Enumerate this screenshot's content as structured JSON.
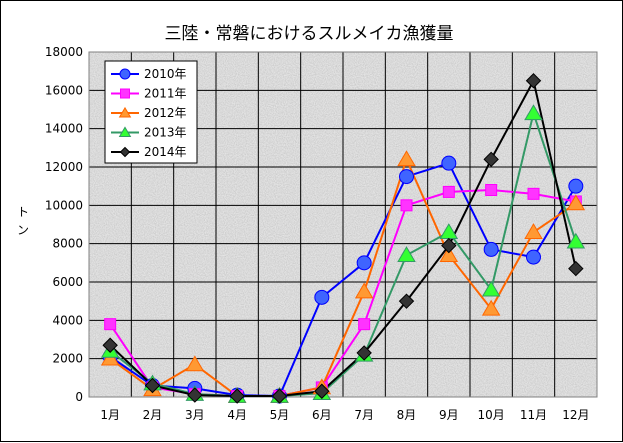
{
  "chart_data": {
    "type": "line",
    "title": "三陸・常磐におけるスルメイカ漁獲量",
    "ylabel": "トン",
    "xlabel": "",
    "categories": [
      "1月",
      "2月",
      "3月",
      "4月",
      "5月",
      "6月",
      "7月",
      "8月",
      "9月",
      "10月",
      "11月",
      "12月"
    ],
    "ylim": [
      0,
      18000
    ],
    "yticks": [
      0,
      2000,
      4000,
      6000,
      8000,
      10000,
      12000,
      14000,
      16000,
      18000
    ],
    "grid": true,
    "legend_position": "top-left",
    "series": [
      {
        "name": "2010年",
        "color": "#0000ff",
        "fill": "#3f64ff",
        "marker": "circle",
        "values": [
          2100,
          600,
          450,
          100,
          50,
          5200,
          7000,
          11500,
          12200,
          7700,
          7300,
          11000
        ]
      },
      {
        "name": "2011年",
        "color": "#ff00ff",
        "fill": "#ff33ff",
        "marker": "square",
        "values": [
          3800,
          500,
          150,
          50,
          50,
          500,
          3800,
          10000,
          10700,
          10800,
          10600,
          10200
        ]
      },
      {
        "name": "2012年",
        "color": "#ff6600",
        "fill": "#ff9933",
        "marker": "triangle",
        "values": [
          2000,
          400,
          1700,
          50,
          50,
          500,
          5500,
          12400,
          7400,
          4600,
          8600,
          10100
        ]
      },
      {
        "name": "2013年",
        "color": "#339966",
        "fill": "#33ff33",
        "marker": "triangle",
        "values": [
          2400,
          700,
          150,
          50,
          50,
          200,
          2200,
          7400,
          8600,
          5600,
          14800,
          8100
        ]
      },
      {
        "name": "2014年",
        "color": "#000000",
        "fill": "#333333",
        "marker": "diamond",
        "values": [
          2700,
          600,
          100,
          50,
          50,
          300,
          2300,
          5000,
          7900,
          12400,
          16500,
          6700
        ]
      }
    ]
  }
}
